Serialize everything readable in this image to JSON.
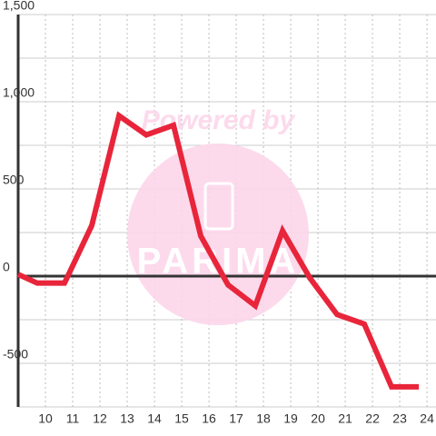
{
  "chart_data": {
    "type": "line",
    "x": [
      9,
      9.7,
      10.7,
      11.7,
      12.7,
      13.7,
      14.7,
      15.7,
      16.7,
      17.7,
      18.7,
      19.7,
      20.7,
      21.7,
      22.7,
      23.7
    ],
    "series": [
      {
        "color": "#e8253a",
        "values": [
          10,
          -40,
          -40,
          290,
          920,
          810,
          865,
          230,
          -50,
          -170,
          260,
          -10,
          -220,
          -275,
          -635,
          -635
        ]
      }
    ],
    "xlim": [
      9,
      24.33
    ],
    "xticks": [
      10,
      11,
      12,
      13,
      14,
      15,
      16,
      17,
      18,
      19,
      20,
      21,
      22,
      23,
      24
    ],
    "ylim": [
      -750,
      1500
    ],
    "yticks": [
      {
        "value": -500,
        "label": "-500"
      },
      0,
      500,
      {
        "value": 1000,
        "label": "1,000"
      },
      {
        "value": 1500,
        "label": "1,500"
      }
    ],
    "minor_yticks": [
      -750,
      -250,
      250,
      750,
      1250
    ],
    "grid": true,
    "watermark": {
      "line1": "Powered by",
      "line2": "PARIMA"
    }
  }
}
